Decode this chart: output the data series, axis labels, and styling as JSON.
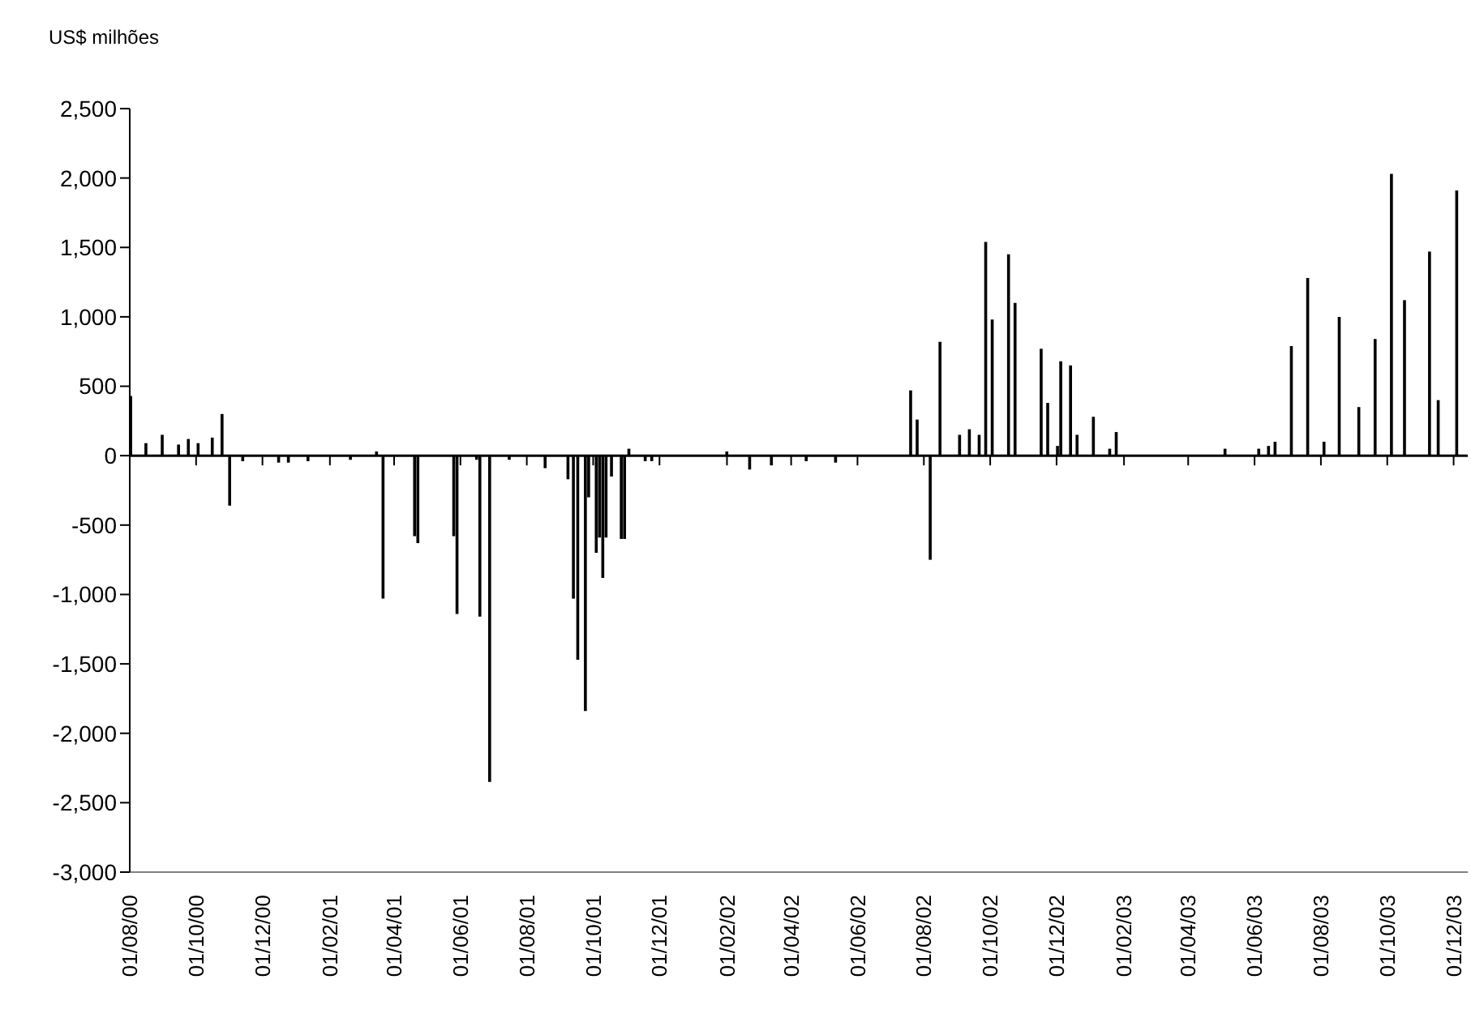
{
  "chart_data": {
    "type": "bar",
    "ylabel": "US$ milhões",
    "x": [
      "2000-08-02",
      "2000-08-16",
      "2000-08-31",
      "2000-09-15",
      "2000-09-24",
      "2000-10-03",
      "2000-10-16",
      "2000-10-25",
      "2000-11-01",
      "2000-11-13",
      "2000-12-16",
      "2000-12-25",
      "2001-01-12",
      "2001-02-20",
      "2001-03-16",
      "2001-03-22",
      "2001-04-20",
      "2001-04-23",
      "2001-05-02",
      "2001-05-26",
      "2001-05-29",
      "2001-06-16",
      "2001-06-19",
      "2001-06-28",
      "2001-07-16",
      "2001-08-18",
      "2001-09-08",
      "2001-09-13",
      "2001-09-17",
      "2001-09-24",
      "2001-09-27",
      "2001-10-04",
      "2001-10-07",
      "2001-10-10",
      "2001-10-13",
      "2001-10-18",
      "2001-10-27",
      "2001-10-30",
      "2001-11-03",
      "2001-11-18",
      "2001-11-24",
      "2001-12-17",
      "2002-02-01",
      "2002-02-22",
      "2002-03-14",
      "2002-04-15",
      "2002-05-12",
      "2002-06-22",
      "2002-07-20",
      "2002-07-26",
      "2002-08-07",
      "2002-08-16",
      "2002-09-03",
      "2002-09-12",
      "2002-09-21",
      "2002-09-27",
      "2002-10-03",
      "2002-10-18",
      "2002-10-24",
      "2002-11-17",
      "2002-11-23",
      "2002-12-02",
      "2002-12-05",
      "2002-12-14",
      "2002-12-20",
      "2003-01-04",
      "2003-01-19",
      "2003-01-25",
      "2003-05-05",
      "2003-06-05",
      "2003-06-14",
      "2003-06-20",
      "2003-07-05",
      "2003-07-20",
      "2003-08-04",
      "2003-08-18",
      "2003-09-05",
      "2003-09-20",
      "2003-10-05",
      "2003-10-17",
      "2003-11-09",
      "2003-11-17",
      "2003-12-04"
    ],
    "values": [
      430,
      90,
      150,
      80,
      120,
      90,
      130,
      300,
      -360,
      -40,
      -50,
      -50,
      -40,
      -30,
      30,
      -1030,
      -580,
      -630,
      null,
      -580,
      -1140,
      -30,
      -1160,
      -2350,
      -30,
      -90,
      -170,
      -1030,
      -1470,
      -1840,
      -300,
      -700,
      -590,
      -880,
      -590,
      -150,
      -600,
      -600,
      50,
      -40,
      -40,
      null,
      30,
      -100,
      -70,
      -40,
      -50,
      null,
      470,
      260,
      -750,
      820,
      150,
      190,
      150,
      1540,
      980,
      1450,
      1100,
      770,
      380,
      70,
      680,
      650,
      150,
      280,
      50,
      170,
      50,
      50,
      70,
      100,
      790,
      1280,
      100,
      1000,
      350,
      840,
      2030,
      1120,
      1470,
      400,
      1910
    ],
    "color": "#000000",
    "xlim": [
      "2000-08-01",
      "2003-12-14"
    ],
    "xticks": [
      {
        "value": "2000-08-01",
        "label": "01/08/00"
      },
      {
        "value": "2000-10-01",
        "label": "01/10/00"
      },
      {
        "value": "2000-12-01",
        "label": "01/12/00"
      },
      {
        "value": "2001-02-01",
        "label": "01/02/01"
      },
      {
        "value": "2001-04-01",
        "label": "01/04/01"
      },
      {
        "value": "2001-06-01",
        "label": "01/06/01"
      },
      {
        "value": "2001-08-01",
        "label": "01/08/01"
      },
      {
        "value": "2001-10-01",
        "label": "01/10/01"
      },
      {
        "value": "2001-12-01",
        "label": "01/12/01"
      },
      {
        "value": "2002-02-01",
        "label": "01/02/02"
      },
      {
        "value": "2002-04-01",
        "label": "01/04/02"
      },
      {
        "value": "2002-06-01",
        "label": "01/06/02"
      },
      {
        "value": "2002-08-01",
        "label": "01/08/02"
      },
      {
        "value": "2002-10-01",
        "label": "01/10/02"
      },
      {
        "value": "2002-12-01",
        "label": "01/12/02"
      },
      {
        "value": "2003-02-01",
        "label": "01/02/03"
      },
      {
        "value": "2003-04-01",
        "label": "01/04/03"
      },
      {
        "value": "2003-06-01",
        "label": "01/06/03"
      },
      {
        "value": "2003-08-01",
        "label": "01/08/03"
      },
      {
        "value": "2003-10-01",
        "label": "01/10/03"
      },
      {
        "value": "2003-12-01",
        "label": "01/12/03"
      }
    ],
    "ylim": [
      -3000,
      2500
    ],
    "yticks": [
      {
        "value": -3000,
        "label": "-3,000"
      },
      {
        "value": -2500,
        "label": "-2,500"
      },
      {
        "value": -2000,
        "label": "-2,000"
      },
      {
        "value": -1500,
        "label": "-1,500"
      },
      {
        "value": -1000,
        "label": "-1,000"
      },
      {
        "value": -500,
        "label": "-500"
      },
      {
        "value": 0,
        "label": "0"
      },
      {
        "value": 500,
        "label": "500"
      },
      {
        "value": 1000,
        "label": "1,000"
      },
      {
        "value": 1500,
        "label": "1,500"
      },
      {
        "value": 2000,
        "label": "2,000"
      },
      {
        "value": 2500,
        "label": "2,500"
      }
    ]
  }
}
